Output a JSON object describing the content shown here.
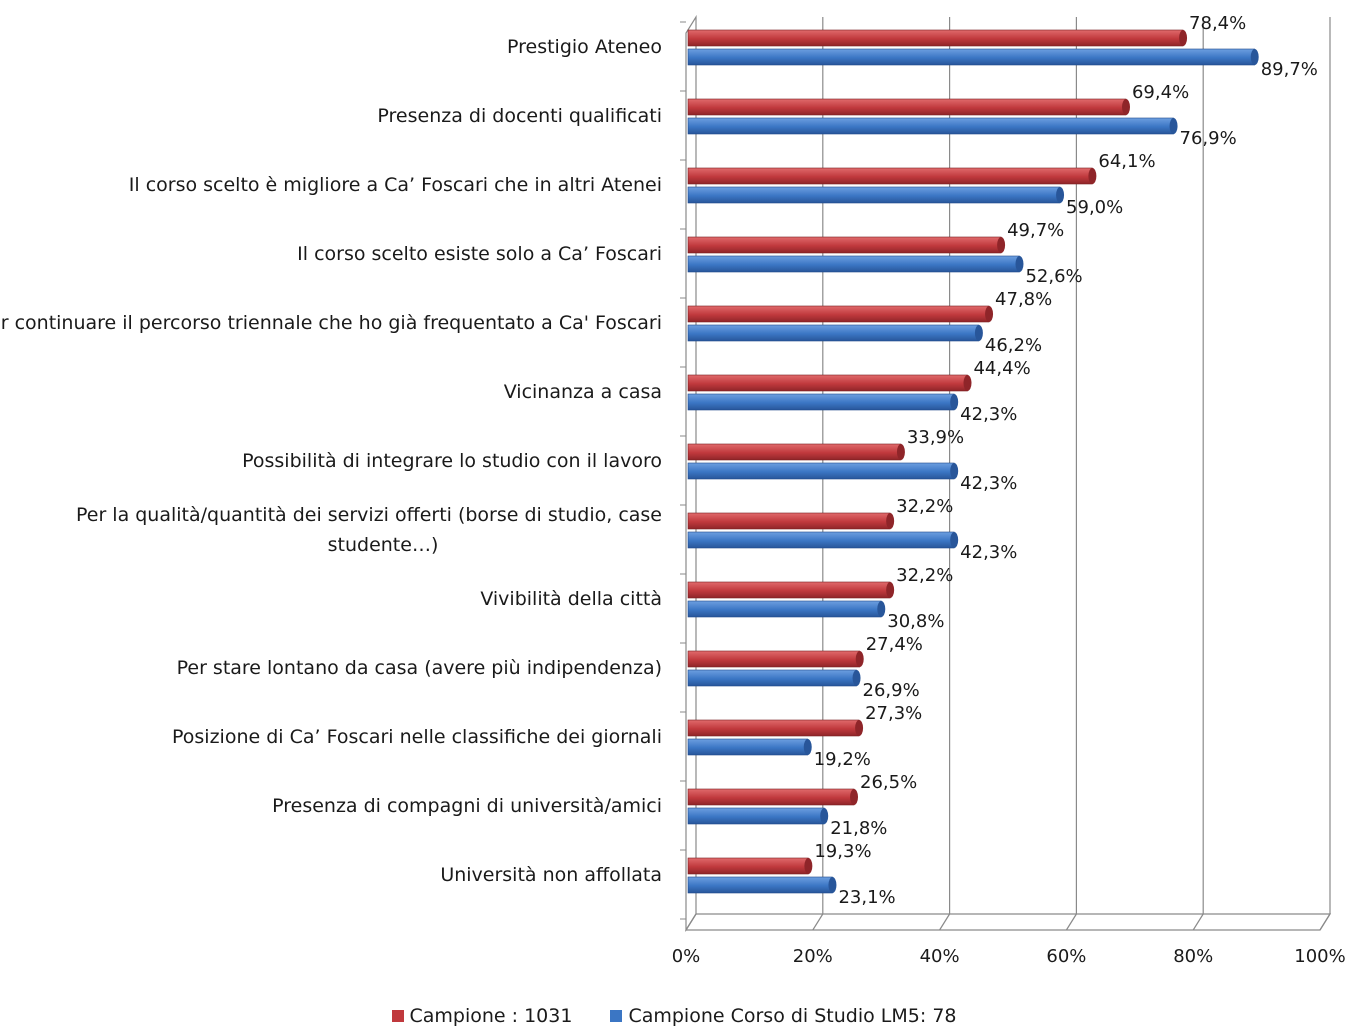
{
  "chart_data": {
    "type": "bar",
    "orientation": "horizontal",
    "categories": [
      "Prestigio Ateneo",
      "Presenza di docenti qualificati",
      "Il corso scelto è migliore a Ca’ Foscari che in altri Atenei",
      "Il corso scelto esiste solo a Ca’ Foscari",
      "Per continuare il percorso triennale che ho già frequentato a Ca' Foscari",
      "Vicinanza a casa",
      "Possibilità di integrare lo studio con il lavoro",
      "Per la qualità/quantità dei servizi offerti (borse di studio, case studente…)",
      "Vivibilità della città",
      "Per stare lontano da casa (avere più indipendenza)",
      "Posizione di Ca’ Foscari nelle classifiche dei giornali",
      "Presenza di compagni di università/amici",
      "Università non affollata"
    ],
    "category_lines": [
      [
        "Prestigio Ateneo"
      ],
      [
        "Presenza di docenti qualificati"
      ],
      [
        "Il corso scelto è migliore a Ca’ Foscari che in altri Atenei"
      ],
      [
        "Il corso scelto esiste solo a Ca’ Foscari"
      ],
      [
        "Per continuare il percorso triennale che ho già frequentato a Ca' Foscari"
      ],
      [
        "Vicinanza a casa"
      ],
      [
        "Possibilità di integrare lo studio con il lavoro"
      ],
      [
        "Per la qualità/quantità dei servizi offerti (borse di studio, case",
        "studente…)"
      ],
      [
        "Vivibilità della città"
      ],
      [
        "Per stare lontano da casa (avere più indipendenza)"
      ],
      [
        "Posizione di Ca’ Foscari nelle classifiche dei giornali"
      ],
      [
        "Presenza di compagni di università/amici"
      ],
      [
        "Università non affollata"
      ]
    ],
    "series": [
      {
        "name": "Campione : 1031",
        "color": "#c0393d",
        "values": [
          78.4,
          69.4,
          64.1,
          49.7,
          47.8,
          44.4,
          33.9,
          32.2,
          32.2,
          27.4,
          27.3,
          26.5,
          19.3
        ],
        "labels": [
          "78,4%",
          "69,4%",
          "64,1%",
          "49,7%",
          "47,8%",
          "44,4%",
          "33,9%",
          "32,2%",
          "32,2%",
          "27,4%",
          "27,3%",
          "26,5%",
          "19,3%"
        ]
      },
      {
        "name": "Campione Corso di Studio LM5: 78",
        "color": "#3b76c4",
        "values": [
          89.7,
          76.9,
          59.0,
          52.6,
          46.2,
          42.3,
          42.3,
          42.3,
          30.8,
          26.9,
          19.2,
          21.8,
          23.1
        ],
        "labels": [
          "89,7%",
          "76,9%",
          "59,0%",
          "52,6%",
          "46,2%",
          "42,3%",
          "42,3%",
          "42,3%",
          "30,8%",
          "26,9%",
          "19,2%",
          "21,8%",
          "23,1%"
        ]
      }
    ],
    "xlim": [
      0,
      100
    ],
    "x_ticks": [
      "0%",
      "20%",
      "40%",
      "60%",
      "80%",
      "100%"
    ],
    "grid": true,
    "legend_position": "bottom"
  }
}
